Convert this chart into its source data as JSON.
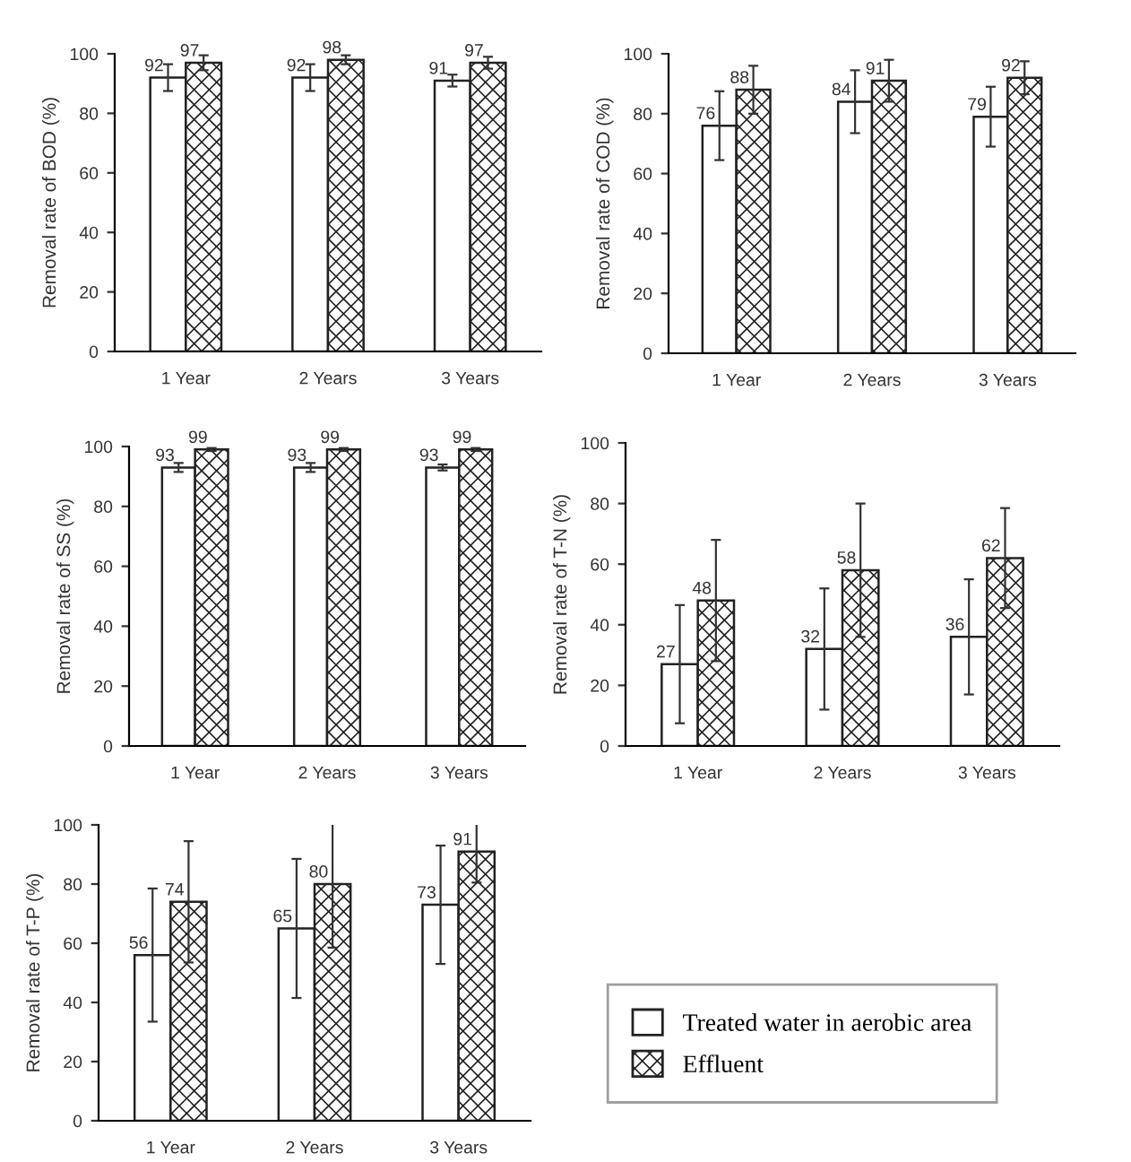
{
  "chart_data": [
    {
      "type": "bar",
      "ylabel": "Removal rate of BOD (%)",
      "categories": [
        "1 Year",
        "2 Years",
        "3 Years"
      ],
      "ylim": [
        0,
        100
      ],
      "yticks": [
        0,
        20,
        40,
        60,
        80,
        100
      ],
      "grid": false,
      "legend": false,
      "data_labels": true,
      "series": [
        {
          "color": "#ffffff",
          "values": [
            92,
            92,
            91
          ],
          "errors": [
            4.5,
            4.5,
            2
          ]
        },
        {
          "color": "#222222",
          "values": [
            97,
            98,
            97
          ],
          "errors": [
            2.5,
            1.5,
            2
          ]
        }
      ]
    },
    {
      "type": "bar",
      "ylabel": "Removal rate of COD (%)",
      "categories": [
        "1 Year",
        "2 Years",
        "3 Years"
      ],
      "ylim": [
        0,
        100
      ],
      "yticks": [
        0,
        20,
        40,
        60,
        80,
        100
      ],
      "grid": false,
      "legend": false,
      "data_labels": true,
      "series": [
        {
          "color": "#ffffff",
          "values": [
            76,
            84,
            79
          ],
          "errors": [
            11.5,
            10.5,
            10
          ]
        },
        {
          "color": "#222222",
          "values": [
            88,
            91,
            92
          ],
          "errors": [
            8,
            7,
            5.5
          ]
        }
      ]
    },
    {
      "type": "bar",
      "ylabel": "Removal rate of SS (%)",
      "categories": [
        "1 Year",
        "2 Years",
        "3 Years"
      ],
      "ylim": [
        0,
        100
      ],
      "yticks": [
        0,
        20,
        40,
        60,
        80,
        100
      ],
      "grid": false,
      "legend": false,
      "data_labels": true,
      "series": [
        {
          "color": "#ffffff",
          "values": [
            93,
            93,
            93
          ],
          "errors": [
            1.5,
            1.5,
            1
          ]
        },
        {
          "color": "#222222",
          "values": [
            99,
            99,
            99
          ],
          "errors": [
            0.5,
            0.5,
            0.5
          ]
        }
      ]
    },
    {
      "type": "bar",
      "ylabel": "Removal rate of T-N (%)",
      "categories": [
        "1 Year",
        "2 Years",
        "3 Years"
      ],
      "ylim": [
        0,
        100
      ],
      "yticks": [
        0,
        20,
        40,
        60,
        80,
        100
      ],
      "grid": false,
      "legend": false,
      "data_labels": true,
      "series": [
        {
          "color": "#ffffff",
          "values": [
            27,
            32,
            36
          ],
          "errors": [
            19.5,
            20,
            19
          ]
        },
        {
          "color": "#222222",
          "values": [
            48,
            58,
            62
          ],
          "errors": [
            20,
            22,
            16.5
          ]
        }
      ]
    },
    {
      "type": "bar",
      "ylabel": "Removal rate of T-P (%)",
      "categories": [
        "1 Year",
        "2 Years",
        "3 Years"
      ],
      "ylim": [
        0,
        100
      ],
      "yticks": [
        0,
        20,
        40,
        60,
        80,
        100
      ],
      "grid": false,
      "legend": "right",
      "data_labels": true,
      "series": [
        {
          "name": "Treated water in aerobic area",
          "color": "#ffffff",
          "values": [
            56,
            65,
            73
          ],
          "errors": [
            22.5,
            23.5,
            20
          ]
        },
        {
          "name": "Effluent",
          "color": "#222222",
          "values": [
            74,
            80,
            91
          ],
          "errors": [
            20.5,
            21.5,
            10.5
          ]
        }
      ]
    }
  ]
}
